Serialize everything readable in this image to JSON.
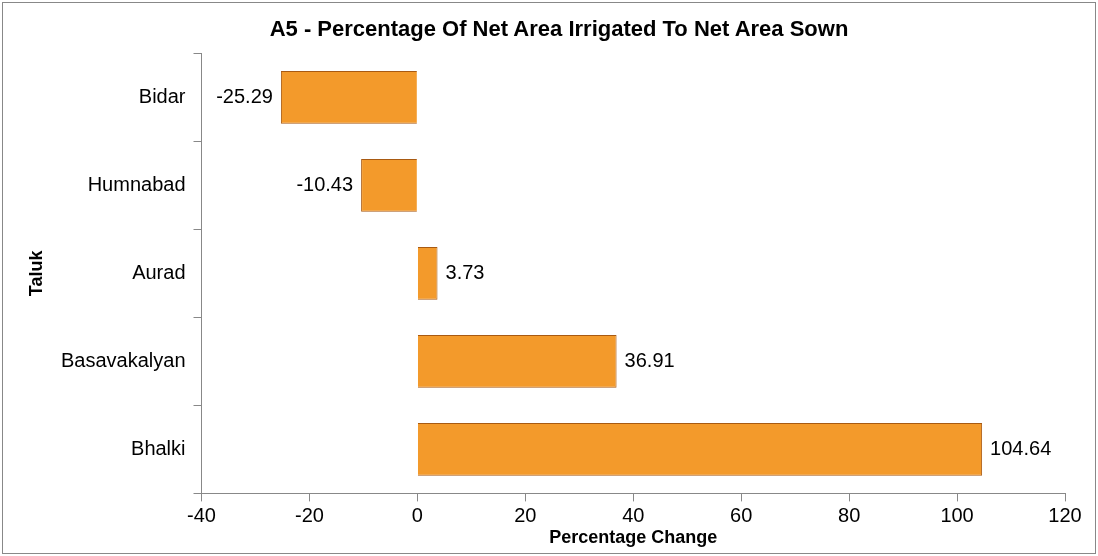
{
  "chart_data": {
    "type": "bar",
    "orientation": "horizontal",
    "title": "A5 - Percentage Of Net Area Irrigated To Net Area Sown",
    "xlabel": "Percentage Change",
    "ylabel": "Taluk",
    "categories": [
      "Bidar",
      "Humnabad",
      "Aurad",
      "Basavakalyan",
      "Bhalki"
    ],
    "values": [
      -25.29,
      -10.43,
      3.73,
      36.91,
      104.64
    ],
    "color": "#f39a2b",
    "xlim": [
      -40,
      120
    ],
    "xticks": [
      -40,
      -20,
      0,
      20,
      40,
      60,
      80,
      100,
      120
    ],
    "grid": false,
    "legend": false,
    "data_labels": true
  }
}
